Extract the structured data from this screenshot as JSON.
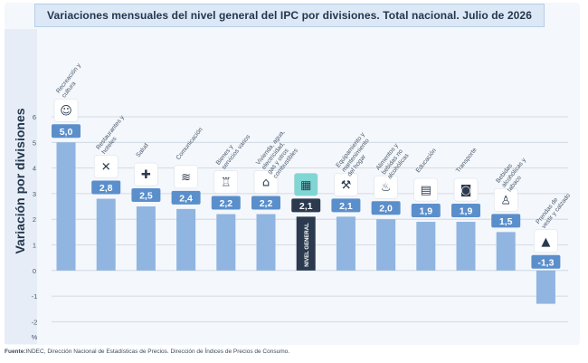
{
  "title": "Variaciones mensuales del nivel general del IPC por divisiones. Total nacional. Julio de 2026",
  "source_label": "Fuente:",
  "source_text": "INDEC, Dirección Nacional de Estadísticas de Precios. Dirección de Índices de Precios de Consumo.",
  "colors": {
    "bar": "#8fb5e0",
    "bar_highlight": "#2b3a4e",
    "badge": "#5b8fcb",
    "badge_highlight": "#2b3a4e",
    "icon_bg": "#ffffff",
    "icon_bg_highlight": "#7fd6d3",
    "grid": "#c9d3df",
    "axis_text": "#4a5a6d",
    "category_text": "#4a5a6d"
  },
  "chart_data": {
    "type": "bar",
    "ylabel": "Variación por divisiones",
    "yunit": "%",
    "ylim": [
      -2,
      6
    ],
    "yticks": [
      -2,
      -1,
      0,
      1,
      2,
      3,
      4,
      5,
      6
    ],
    "grid": true,
    "categories": [
      "Recreación y cultura",
      "Restaurantes y hoteles",
      "Salud",
      "Comunicación",
      "Bienes y servicios varios",
      "Vivienda, agua, electricidad, gas y otros combustibles",
      "NIVEL GENERAL",
      "Equipamiento y mantenimiento del hogar",
      "Alimentos y bebidas no alcohólicas",
      "Educación",
      "Transporte",
      "Bebidas alcohólicas y tabaco",
      "Prendas de vestir y calzado"
    ],
    "values": [
      5.0,
      2.8,
      2.5,
      2.4,
      2.2,
      2.2,
      2.1,
      2.1,
      2.0,
      1.9,
      1.9,
      1.5,
      -1.3
    ],
    "value_labels": [
      "5,0",
      "2,8",
      "2,5",
      "2,4",
      "2,2",
      "2,2",
      "2,1",
      "2,1",
      "2,0",
      "1,9",
      "1,9",
      "1,5",
      "-1,3"
    ],
    "icons": [
      "theater-masks-icon",
      "fork-knife-icon",
      "health-cross-icon",
      "wifi-icon",
      "cosmetics-icon",
      "house-bolt-icon",
      "shopping-basket-icon",
      "tools-icon",
      "food-plate-icon",
      "book-icon",
      "car-icon",
      "bottle-glass-icon",
      "tshirt-icon"
    ],
    "highlight_index": 6,
    "highlight_bar_label": "NIVEL GENERAL"
  }
}
